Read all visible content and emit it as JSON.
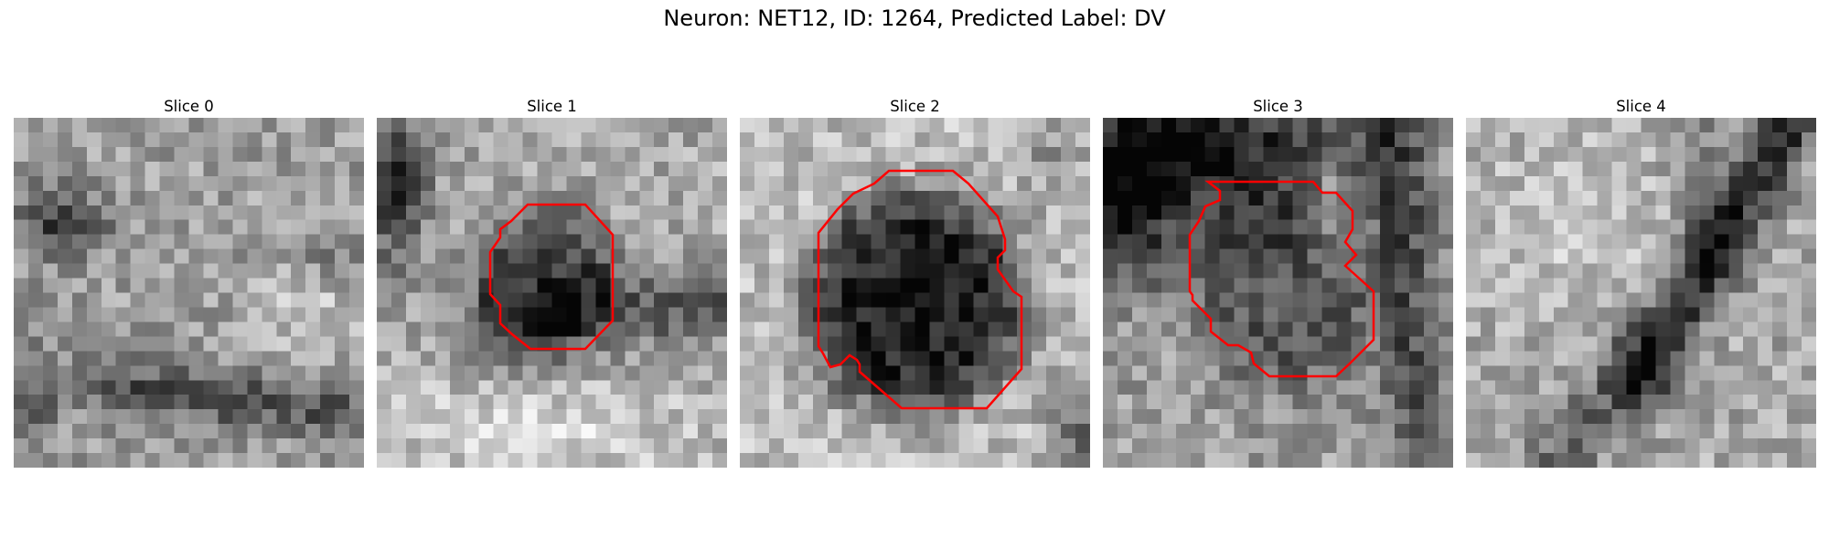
{
  "figure": {
    "title": "Neuron: NET12, ID: 1264, Predicted Label: DV"
  },
  "panels": [
    {
      "title": "Slice 0",
      "has_mask": false
    },
    {
      "title": "Slice 1",
      "has_mask": true
    },
    {
      "title": "Slice 2",
      "has_mask": true
    },
    {
      "title": "Slice 3",
      "has_mask": true
    },
    {
      "title": "Slice 4",
      "has_mask": false
    }
  ],
  "colors": {
    "contour": "#ff0000",
    "colormap": "grayscale"
  }
}
